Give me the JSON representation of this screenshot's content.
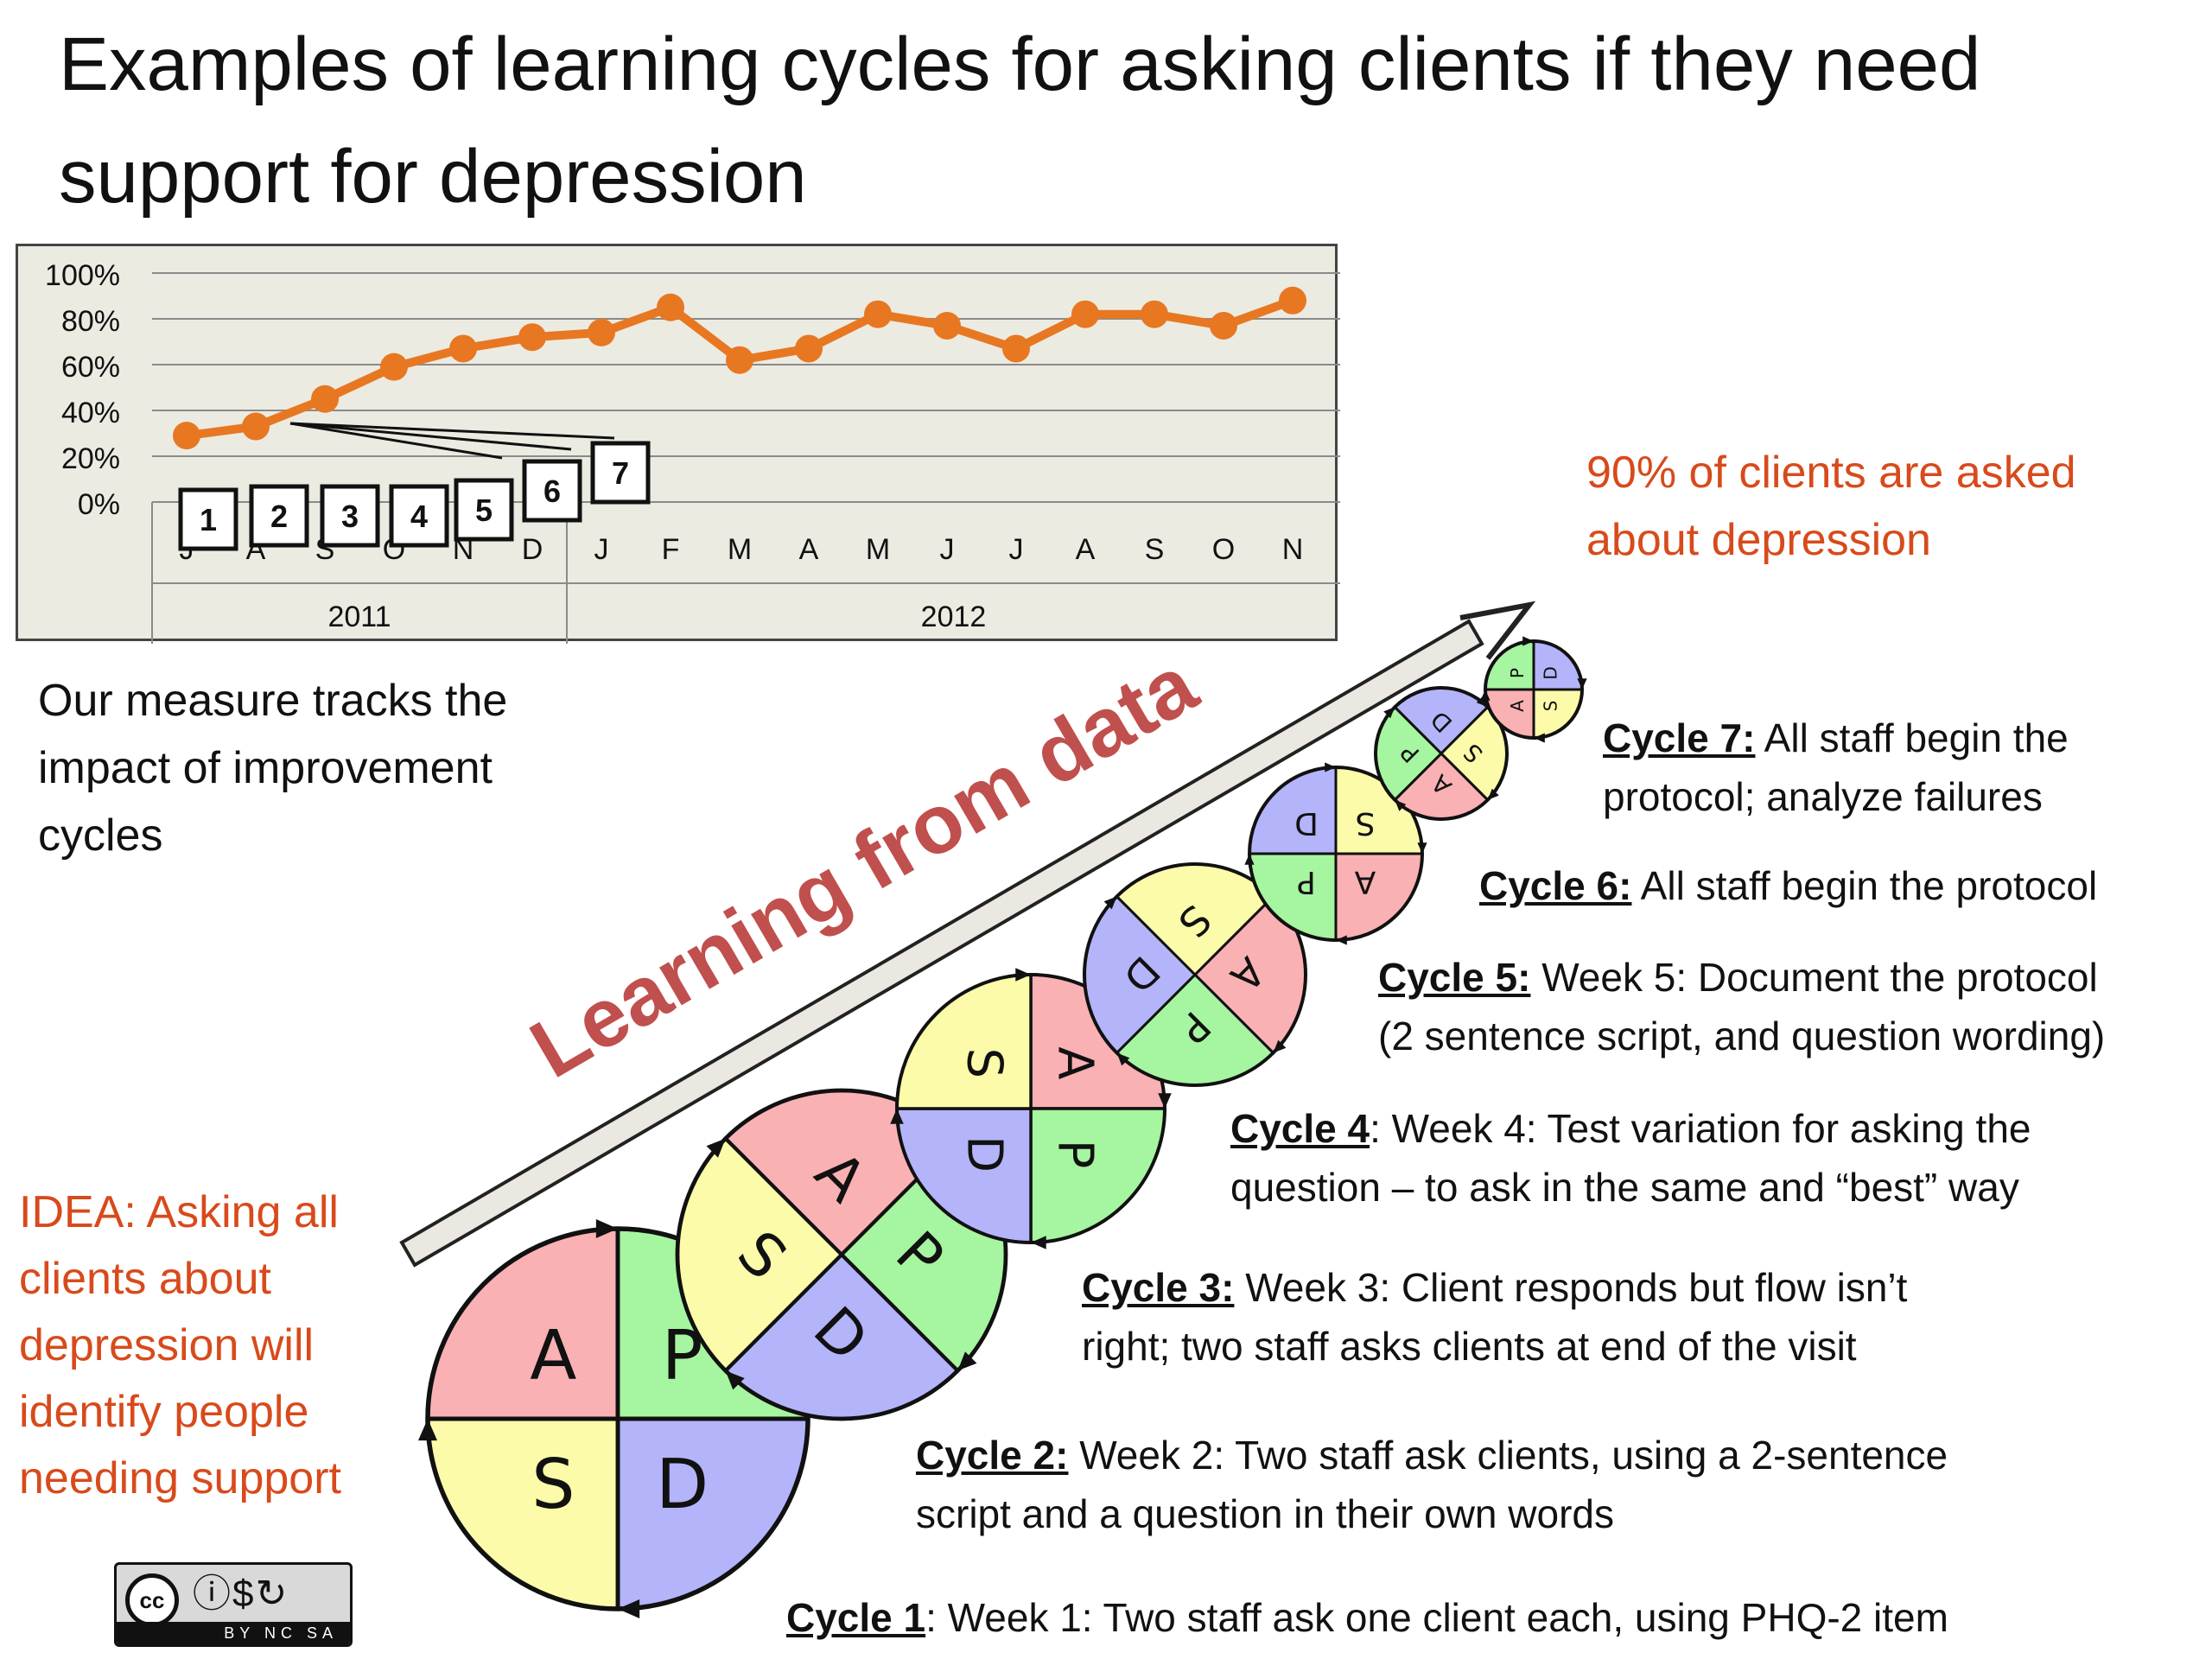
{
  "title": "Examples of learning cycles for asking clients if they need support for depression",
  "chart_data": {
    "type": "line",
    "x": [
      "J",
      "A",
      "S",
      "O",
      "N",
      "D",
      "J",
      "F",
      "M",
      "A",
      "M",
      "J",
      "J",
      "A",
      "S",
      "O",
      "N"
    ],
    "year_groups": [
      {
        "label": "2011",
        "count": 6
      },
      {
        "label": "2012",
        "count": 11
      }
    ],
    "values": [
      29,
      33,
      45,
      59,
      67,
      72,
      74,
      85,
      62,
      67,
      82,
      77,
      67,
      82,
      82,
      77,
      88
    ],
    "ylim": [
      0,
      100
    ],
    "yticks": [
      "0%",
      "20%",
      "40%",
      "60%",
      "80%",
      "100%"
    ],
    "grid": true,
    "line_color": "#e87722",
    "cycle_markers": [
      "1",
      "2",
      "3",
      "4",
      "5",
      "6",
      "7"
    ]
  },
  "measure_note": "Our measure tracks the impact of improvement cycles",
  "goal": "90% of clients are asked about depression",
  "idea": "IDEA: Asking all clients about depression will identify people needing support",
  "arrow_label": "Learning from data",
  "pdsa_letters": {
    "plan": "P",
    "do": "D",
    "study": "S",
    "act": "A"
  },
  "pdsa_colors": {
    "plan": "#a6f5a0",
    "do": "#b4b4fb",
    "study": "#fbfba9",
    "act": "#fab1b3"
  },
  "cycles": [
    {
      "label": "Cycle 1",
      "text": ": Week 1: Two staff ask one client each, using PHQ-2 item"
    },
    {
      "label": "Cycle 2:",
      "text": " Week 2: Two staff ask clients, using a 2-sentence",
      "text2": "script and a question in their own words"
    },
    {
      "label": "Cycle 3:",
      "text": " Week 3: Client responds but flow isn’t",
      "text2": "right; two staff asks clients at end of the visit"
    },
    {
      "label": "Cycle 4",
      "text": ": Week 4: Test variation for asking the",
      "text2": "question – to ask in the same and “best” way"
    },
    {
      "label": "Cycle 5:",
      "text": " Week 5:  Document the protocol",
      "text2": "(2 sentence script, and question wording)"
    },
    {
      "label": "Cycle 6:",
      "text": " All staff begin the protocol"
    },
    {
      "label": "Cycle 7:",
      "text": " All staff begin the",
      "text2": "protocol; analyze failures"
    }
  ],
  "license": {
    "icons": "ⓘ$↻",
    "strip": "BY NC SA",
    "cc": "cc"
  }
}
